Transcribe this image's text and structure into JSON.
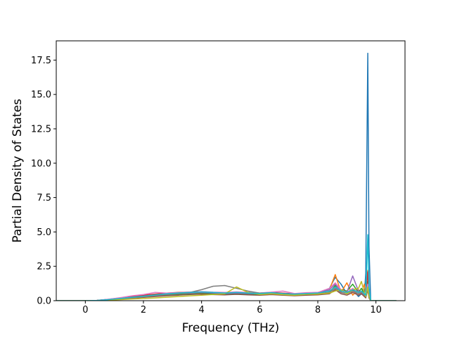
{
  "chart_data": {
    "type": "line",
    "title": "",
    "xlabel": "Frequency (THz)",
    "ylabel": "Partial Density of States",
    "xlim": [
      -1.0,
      11.0
    ],
    "ylim": [
      0.0,
      18.9
    ],
    "xticks": [
      0,
      2,
      4,
      6,
      8,
      10
    ],
    "yticks": [
      0.0,
      2.5,
      5.0,
      7.5,
      10.0,
      12.5,
      15.0,
      17.5
    ],
    "xtick_labels": [
      "0",
      "2",
      "4",
      "6",
      "8",
      "10"
    ],
    "ytick_labels": [
      "0.0",
      "2.5",
      "5.0",
      "7.5",
      "10.0",
      "12.5",
      "15.0",
      "17.5"
    ],
    "grid": false,
    "legend": "none",
    "frequency": [
      -1.0,
      -0.5,
      0.0,
      0.4,
      0.8,
      1.2,
      1.6,
      2.0,
      2.4,
      2.8,
      3.2,
      3.6,
      4.0,
      4.4,
      4.8,
      5.2,
      5.6,
      6.0,
      6.4,
      6.8,
      7.2,
      7.6,
      8.0,
      8.4,
      8.6,
      8.8,
      9.0,
      9.2,
      9.4,
      9.5,
      9.6,
      9.65,
      9.72,
      9.76,
      9.82,
      10.0,
      10.5,
      10.7
    ],
    "series": [
      {
        "color": "#1f77b4",
        "values": [
          0,
          0,
          0,
          0.02,
          0.1,
          0.2,
          0.28,
          0.35,
          0.42,
          0.5,
          0.55,
          0.6,
          0.62,
          0.58,
          0.55,
          0.6,
          0.55,
          0.5,
          0.55,
          0.5,
          0.45,
          0.5,
          0.55,
          0.9,
          1.7,
          1.2,
          0.5,
          0.8,
          0.3,
          0.5,
          0.4,
          2.0,
          18.0,
          4.0,
          0,
          0,
          0,
          0
        ]
      },
      {
        "color": "#ff7f0e",
        "values": [
          0,
          0,
          0,
          0.02,
          0.08,
          0.15,
          0.22,
          0.3,
          0.38,
          0.45,
          0.5,
          0.55,
          0.58,
          0.52,
          0.5,
          0.55,
          0.5,
          0.48,
          0.52,
          0.46,
          0.42,
          0.48,
          0.5,
          0.8,
          1.9,
          0.6,
          1.3,
          0.4,
          0.8,
          0.5,
          1.2,
          0.6,
          2.2,
          0.8,
          0,
          0,
          0,
          0
        ]
      },
      {
        "color": "#2ca02c",
        "values": [
          0,
          0,
          0,
          0.01,
          0.06,
          0.12,
          0.2,
          0.26,
          0.32,
          0.38,
          0.44,
          0.48,
          0.52,
          0.5,
          0.48,
          0.52,
          0.48,
          0.46,
          0.5,
          0.44,
          0.4,
          0.45,
          0.48,
          0.6,
          1.1,
          0.8,
          0.7,
          1.2,
          0.6,
          0.9,
          0.5,
          0.4,
          1.4,
          0.4,
          0,
          0,
          0,
          0
        ]
      },
      {
        "color": "#d62728",
        "values": [
          0,
          0,
          0,
          0.02,
          0.09,
          0.18,
          0.3,
          0.4,
          0.48,
          0.55,
          0.6,
          0.62,
          0.65,
          0.6,
          0.58,
          0.62,
          0.58,
          0.55,
          0.6,
          0.55,
          0.5,
          0.55,
          0.6,
          0.7,
          1.0,
          0.6,
          0.5,
          0.7,
          0.5,
          0.6,
          0.4,
          0.3,
          2.1,
          0.5,
          0,
          0,
          0,
          0
        ]
      },
      {
        "color": "#9467bd",
        "values": [
          0,
          0,
          0,
          0.01,
          0.07,
          0.14,
          0.24,
          0.32,
          0.4,
          0.48,
          0.52,
          0.56,
          0.6,
          0.56,
          0.52,
          0.56,
          0.52,
          0.5,
          0.54,
          0.48,
          0.44,
          0.5,
          0.52,
          0.8,
          1.2,
          0.7,
          0.6,
          1.8,
          0.7,
          0.5,
          0.4,
          0.3,
          1.0,
          0.3,
          0,
          0,
          0,
          0
        ]
      },
      {
        "color": "#8c564b",
        "values": [
          0,
          0,
          0,
          0.01,
          0.05,
          0.1,
          0.18,
          0.24,
          0.3,
          0.36,
          0.4,
          0.45,
          0.48,
          0.44,
          0.42,
          0.46,
          0.42,
          0.4,
          0.44,
          0.4,
          0.36,
          0.4,
          0.42,
          0.5,
          0.8,
          0.5,
          0.4,
          0.6,
          0.4,
          0.5,
          0.3,
          0.2,
          0.8,
          0.2,
          0,
          0,
          0,
          0
        ]
      },
      {
        "color": "#e377c2",
        "values": [
          0,
          0,
          0,
          0.02,
          0.1,
          0.22,
          0.35,
          0.45,
          0.6,
          0.55,
          0.58,
          0.62,
          0.66,
          0.62,
          0.6,
          0.64,
          0.6,
          0.56,
          0.62,
          0.7,
          0.52,
          0.58,
          0.6,
          0.9,
          1.3,
          0.8,
          0.6,
          0.9,
          0.6,
          0.7,
          0.5,
          0.4,
          1.2,
          0.4,
          0,
          0,
          0,
          0
        ]
      },
      {
        "color": "#7f7f7f",
        "values": [
          0,
          0,
          0,
          0.01,
          0.06,
          0.12,
          0.2,
          0.28,
          0.36,
          0.44,
          0.5,
          0.6,
          0.8,
          1.05,
          1.1,
          0.9,
          0.7,
          0.55,
          0.58,
          0.5,
          0.45,
          0.5,
          0.52,
          0.6,
          0.9,
          0.6,
          0.5,
          0.7,
          0.5,
          0.6,
          0.4,
          0.3,
          0.9,
          0.3,
          0,
          0,
          0,
          0
        ]
      },
      {
        "color": "#bcbd22",
        "values": [
          0,
          0,
          0,
          0.01,
          0.04,
          0.08,
          0.12,
          0.16,
          0.2,
          0.25,
          0.3,
          0.35,
          0.4,
          0.45,
          0.5,
          1.0,
          0.6,
          0.45,
          0.5,
          0.44,
          0.4,
          0.46,
          0.48,
          0.55,
          0.7,
          0.8,
          0.5,
          0.8,
          0.9,
          1.4,
          0.6,
          0.3,
          1.0,
          0.3,
          0,
          0,
          0,
          0
        ]
      },
      {
        "color": "#17becf",
        "values": [
          0,
          0,
          0,
          0.02,
          0.08,
          0.16,
          0.25,
          0.33,
          0.42,
          0.5,
          0.56,
          0.6,
          0.64,
          0.6,
          0.56,
          0.6,
          0.56,
          0.52,
          0.58,
          0.52,
          0.48,
          0.52,
          0.56,
          0.7,
          1.0,
          0.7,
          0.6,
          0.8,
          0.6,
          0.7,
          0.5,
          0.4,
          4.8,
          1.0,
          0,
          0,
          0,
          0
        ]
      }
    ]
  }
}
